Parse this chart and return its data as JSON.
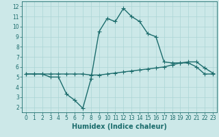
{
  "title": "",
  "xlabel": "Humidex (Indice chaleur)",
  "xlim": [
    -0.5,
    23.5
  ],
  "ylim": [
    1.5,
    12.5
  ],
  "yticks": [
    2,
    3,
    4,
    5,
    6,
    7,
    8,
    9,
    10,
    11,
    12
  ],
  "xticks": [
    0,
    1,
    2,
    3,
    4,
    5,
    6,
    7,
    8,
    9,
    10,
    11,
    12,
    13,
    14,
    15,
    16,
    17,
    18,
    19,
    20,
    21,
    22,
    23
  ],
  "bg_color": "#cce8e8",
  "line_color": "#1a6b6b",
  "line1_x": [
    0,
    1,
    2,
    3,
    4,
    5,
    6,
    7,
    8,
    9,
    10,
    11,
    12,
    13,
    14,
    15,
    16,
    17,
    18,
    19,
    20,
    21,
    22,
    23
  ],
  "line1_y": [
    5.3,
    5.3,
    5.3,
    5.0,
    5.0,
    3.3,
    2.7,
    1.9,
    4.8,
    9.5,
    10.8,
    10.5,
    11.8,
    11.0,
    10.5,
    9.3,
    9.0,
    6.5,
    6.4,
    6.4,
    6.4,
    6.0,
    5.3,
    5.3
  ],
  "line2_x": [
    0,
    1,
    2,
    3,
    4,
    5,
    6,
    7,
    8,
    9,
    10,
    11,
    12,
    13,
    14,
    15,
    16,
    17,
    18,
    19,
    20,
    21,
    22,
    23
  ],
  "line2_y": [
    5.3,
    5.3,
    5.3,
    5.3,
    5.3,
    5.3,
    5.3,
    5.3,
    5.2,
    5.2,
    5.3,
    5.4,
    5.5,
    5.6,
    5.7,
    5.8,
    5.9,
    6.0,
    6.2,
    6.4,
    6.5,
    6.5,
    5.9,
    5.4
  ],
  "marker": "+",
  "markersize": 4,
  "linewidth": 1.0,
  "xlabel_fontsize": 7,
  "tick_fontsize": 5.5,
  "grid_color": "#aad4d4"
}
